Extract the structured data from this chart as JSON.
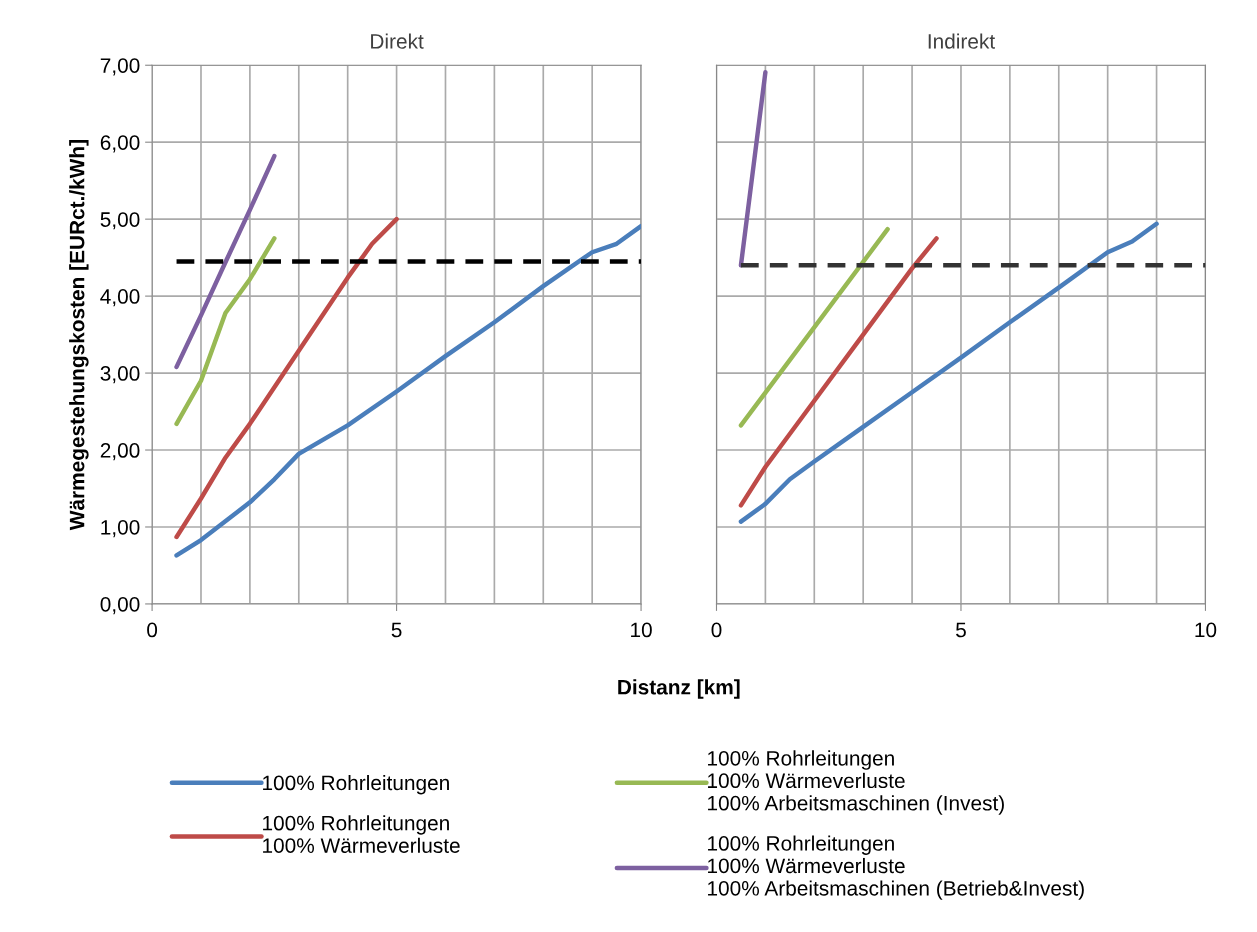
{
  "chart_data": [
    {
      "type": "line",
      "title": "Direkt",
      "xlabel": "Distanz [km]",
      "ylabel": "Wärmegestehungskosten [EURct./kWh]",
      "grid": true,
      "legend": "bottom",
      "marker": "none",
      "line_style": "solid",
      "xlim": [
        0,
        10
      ],
      "xticks": [
        0,
        {
          "value": 1,
          "label": null
        },
        {
          "value": 2,
          "label": null
        },
        {
          "value": 3,
          "label": null
        },
        {
          "value": 4,
          "label": null
        },
        5,
        {
          "value": 6,
          "label": null
        },
        {
          "value": 7,
          "label": null
        },
        {
          "value": 8,
          "label": null
        },
        {
          "value": 9,
          "label": null
        },
        10
      ],
      "ylim": [
        0,
        7
      ],
      "yticks": [
        {
          "value": 0,
          "label": "0,00"
        },
        {
          "value": 1,
          "label": "1,00"
        },
        {
          "value": 2,
          "label": "2,00"
        },
        {
          "value": 3,
          "label": "3,00"
        },
        {
          "value": 4,
          "label": "4,00"
        },
        {
          "value": 5,
          "label": "5,00"
        },
        {
          "value": 6,
          "label": "6,00"
        },
        {
          "value": 7,
          "label": "7,00"
        }
      ],
      "series": [
        {
          "name": "100% Rohrleitungen",
          "color": "#4a7ebb",
          "x": [
            0.5,
            1,
            2,
            2.5,
            3,
            4,
            5,
            6,
            7,
            8,
            9,
            9.5,
            10
          ],
          "values": [
            0.63,
            0.83,
            1.32,
            1.62,
            1.95,
            2.32,
            2.76,
            3.22,
            3.66,
            4.13,
            4.57,
            4.68,
            4.91
          ]
        },
        {
          "name": "100% Rohrleitungen\n100% Wärmeverluste",
          "color": "#be4b48",
          "x": [
            0.5,
            1,
            1.5,
            2,
            3,
            4,
            4.5,
            5
          ],
          "values": [
            0.87,
            1.37,
            1.9,
            2.34,
            3.29,
            4.24,
            4.68,
            5.0
          ]
        },
        {
          "name": "100% Rohrleitungen\n100% Wärmeverluste\n100% Arbeitsmaschinen (Invest)",
          "color": "#98b954",
          "x": [
            0.5,
            1,
            1.5,
            2,
            2.5
          ],
          "values": [
            2.34,
            2.9,
            3.78,
            4.22,
            4.75
          ]
        },
        {
          "name": "100% Rohrleitungen\n100% Wärmeverluste\n100% Arbeitsmaschinen (Betrieb&Invest)",
          "color": "#7d60a0",
          "x": [
            0.5,
            1,
            1.5,
            2,
            2.5
          ],
          "values": [
            3.08,
            3.75,
            4.44,
            5.12,
            5.82
          ]
        },
        {
          "color": "#000000",
          "line_style": "dashed",
          "x": [
            0.5,
            10
          ],
          "values": [
            4.45,
            4.45
          ]
        }
      ]
    },
    {
      "type": "line",
      "title": "Indirekt",
      "grid": true,
      "marker": "none",
      "line_style": "solid",
      "tick_labels": "x",
      "xlim": [
        0,
        10
      ],
      "xticks": [
        0,
        {
          "value": 1,
          "label": null
        },
        {
          "value": 2,
          "label": null
        },
        {
          "value": 3,
          "label": null
        },
        {
          "value": 4,
          "label": null
        },
        5,
        {
          "value": 6,
          "label": null
        },
        {
          "value": 7,
          "label": null
        },
        {
          "value": 8,
          "label": null
        },
        {
          "value": 9,
          "label": null
        },
        10
      ],
      "ylim": [
        0,
        7
      ],
      "yticks": [
        0,
        1,
        2,
        3,
        4,
        5,
        6,
        7
      ],
      "series": [
        {
          "color": "#4a7ebb",
          "x": [
            0.5,
            1,
            1.5,
            2,
            3,
            4,
            5,
            6,
            7,
            8,
            8.5,
            9
          ],
          "values": [
            1.07,
            1.3,
            1.62,
            1.85,
            2.3,
            2.75,
            3.2,
            3.66,
            4.11,
            4.57,
            4.71,
            4.94
          ]
        },
        {
          "color": "#be4b48",
          "x": [
            0.5,
            1,
            2,
            3,
            4,
            4.5
          ],
          "values": [
            1.28,
            1.78,
            2.64,
            3.5,
            4.36,
            4.75
          ]
        },
        {
          "color": "#98b954",
          "x": [
            0.5,
            3.5
          ],
          "values": [
            2.32,
            4.87
          ]
        },
        {
          "color": "#7d60a0",
          "x": [
            0.5,
            1
          ],
          "values": [
            4.4,
            6.91
          ]
        },
        {
          "color": "#333333",
          "line_style": "dashed",
          "x": [
            0.5,
            10
          ],
          "values": [
            4.4,
            4.4
          ]
        }
      ]
    }
  ]
}
